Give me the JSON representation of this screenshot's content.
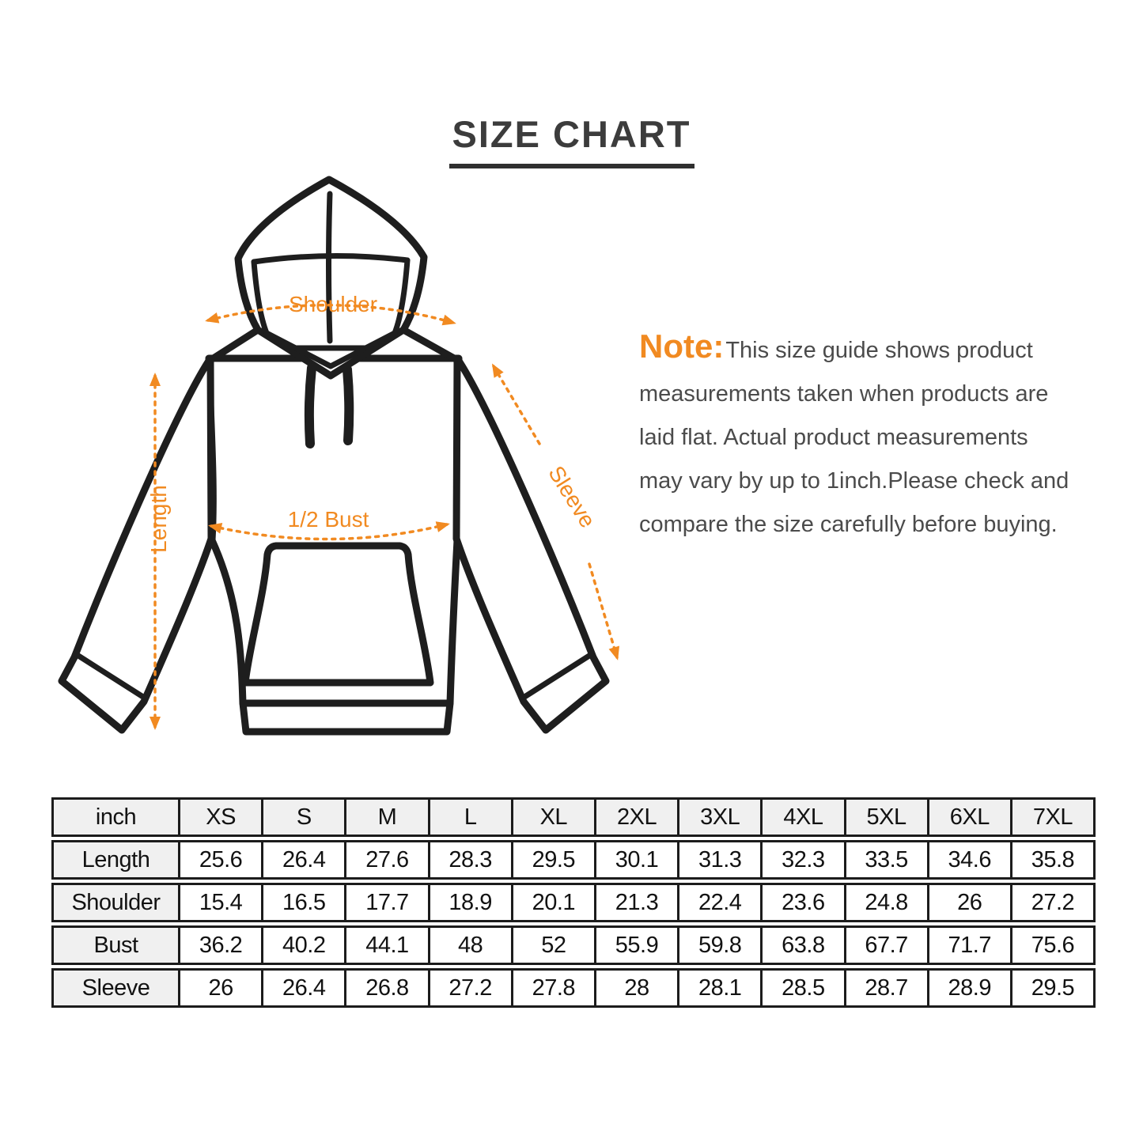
{
  "title": "SIZE CHART",
  "colors": {
    "accent_orange": "#f18a21",
    "line_art": "#1e1e1e",
    "title_text": "#3c3c3c",
    "note_text": "#4b4b4b",
    "table_border": "#1c1c1c",
    "table_header_bg": "#f0f0f0"
  },
  "diagram": {
    "labels": {
      "shoulder": "Shoulder",
      "length": "Length",
      "half_bust": "1/2 Bust",
      "sleeve": "Sleeve"
    }
  },
  "note": {
    "prefix": "Note:",
    "lines": [
      "This size guide shows product",
      "measurements taken when products are",
      "laid flat. Actual product measurements",
      "may vary by up to 1inch.Please check and",
      "compare the size carefully before buying."
    ]
  },
  "chart_data": {
    "type": "table",
    "title": "SIZE CHART",
    "unit_header": "inch",
    "columns": [
      "XS",
      "S",
      "M",
      "L",
      "XL",
      "2XL",
      "3XL",
      "4XL",
      "5XL",
      "6XL",
      "7XL"
    ],
    "rows": [
      {
        "label": "Length",
        "values": [
          25.6,
          26.4,
          27.6,
          28.3,
          29.5,
          30.1,
          31.3,
          32.3,
          33.5,
          34.6,
          35.8
        ]
      },
      {
        "label": "Shoulder",
        "values": [
          15.4,
          16.5,
          17.7,
          18.9,
          20.1,
          21.3,
          22.4,
          23.6,
          24.8,
          26,
          27.2
        ]
      },
      {
        "label": "Bust",
        "values": [
          36.2,
          40.2,
          44.1,
          48,
          52,
          55.9,
          59.8,
          63.8,
          67.7,
          71.7,
          75.6
        ]
      },
      {
        "label": "Sleeve",
        "values": [
          26,
          26.4,
          26.8,
          27.2,
          27.8,
          28,
          28.1,
          28.5,
          28.7,
          28.9,
          29.5
        ]
      }
    ]
  }
}
